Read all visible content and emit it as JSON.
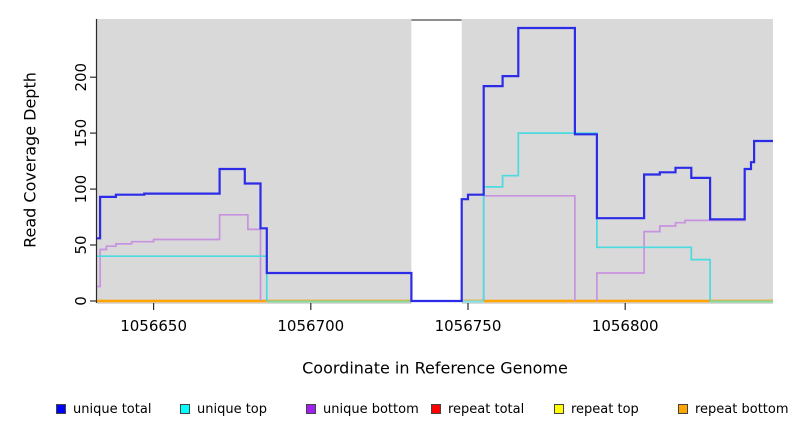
{
  "figure": {
    "y_axis_label": "Read Coverage Depth",
    "x_axis_label": "Coordinate in Reference Genome"
  },
  "legend": {
    "position": "bottom",
    "items": [
      {
        "label": "unique total",
        "color": "#0000FF"
      },
      {
        "label": "unique top",
        "color": "#00FFFF"
      },
      {
        "label": "unique bottom",
        "color": "#A020F0"
      },
      {
        "label": "repeat total",
        "color": "#FF0000"
      },
      {
        "label": "repeat top",
        "color": "#FFFF00"
      },
      {
        "label": "repeat bottom",
        "color": "#FFA500"
      }
    ]
  },
  "chart_data": {
    "type": "line",
    "step": true,
    "title": "",
    "xlabel": "Coordinate in Reference Genome",
    "ylabel": "Read Coverage Depth",
    "x_range": [
      1056632,
      1056847
    ],
    "y_range": [
      0,
      252
    ],
    "grid": false,
    "legend_position": "bottom",
    "plot_bg_color": "#D9D9D9",
    "x_ticks": [
      {
        "label": "1056650",
        "value": 1056650
      },
      {
        "label": "1056700",
        "value": 1056700
      },
      {
        "label": "1056750",
        "value": 1056750
      },
      {
        "label": "1056800",
        "value": 1056800
      }
    ],
    "y_ticks": [
      {
        "label": "0",
        "value": 0
      },
      {
        "label": "50",
        "value": 50
      },
      {
        "label": "100",
        "value": 100
      },
      {
        "label": "150",
        "value": 150
      },
      {
        "label": "200",
        "value": 200
      }
    ],
    "background_regions": [
      [
        1056632,
        1056732
      ],
      [
        1056748,
        1056847
      ]
    ],
    "coverage_gap": {
      "start": 1056732,
      "end": 1056748,
      "top_border_color": "#8E8E8E"
    },
    "series": [
      {
        "name": "repeat total",
        "line_color": "#FF0000",
        "segments": [
          [
            [
              1056632,
              0
            ],
            [
              1056732,
              0
            ]
          ],
          [
            [
              1056748,
              0
            ],
            [
              1056847,
              0
            ]
          ]
        ]
      },
      {
        "name": "repeat top",
        "line_color": "#FFFF00",
        "segments": [
          [
            [
              1056632,
              0
            ],
            [
              1056732,
              0
            ]
          ],
          [
            [
              1056748,
              0
            ],
            [
              1056847,
              0
            ]
          ]
        ]
      },
      {
        "name": "repeat bottom",
        "line_color": "#FFA500",
        "segments": [
          [
            [
              1056632,
              0
            ],
            [
              1056732,
              0
            ]
          ],
          [
            [
              1056748,
              0
            ],
            [
              1056847,
              0
            ]
          ]
        ]
      },
      {
        "name": "unique bottom",
        "line_color": "#C792DF",
        "segments": [
          [
            [
              1056632,
              13
            ],
            [
              1056633,
              46
            ],
            [
              1056635,
              49
            ],
            [
              1056638,
              51
            ],
            [
              1056643,
              53
            ],
            [
              1056650,
              55
            ],
            [
              1056671,
              77
            ],
            [
              1056680,
              64
            ],
            [
              1056684,
              0
            ]
          ],
          [
            [
              1056755,
              0
            ],
            [
              1056755,
              94
            ],
            [
              1056784,
              0
            ]
          ],
          [
            [
              1056791,
              0
            ],
            [
              1056791,
              25
            ],
            [
              1056806,
              62
            ],
            [
              1056811,
              67
            ],
            [
              1056816,
              70
            ],
            [
              1056819,
              72
            ],
            [
              1056838,
              118
            ],
            [
              1056840,
              124
            ],
            [
              1056841,
              143
            ],
            [
              1056847,
              143
            ]
          ]
        ]
      },
      {
        "name": "unique top",
        "line_color": "#4ADAE0",
        "segments": [
          [
            [
              1056632,
              40
            ],
            [
              1056686,
              0
            ]
          ],
          [
            [
              1056755,
              0
            ],
            [
              1056755,
              102
            ],
            [
              1056761,
              112
            ],
            [
              1056766,
              150
            ],
            [
              1056791,
              48
            ],
            [
              1056821,
              37
            ],
            [
              1056827,
              0
            ]
          ]
        ]
      },
      {
        "name": "unique total",
        "line_color": "#2C2CE8",
        "segments": [
          [
            [
              1056632,
              56
            ],
            [
              1056633,
              93
            ],
            [
              1056638,
              95
            ],
            [
              1056647,
              96
            ],
            [
              1056671,
              118
            ],
            [
              1056679,
              105
            ],
            [
              1056684,
              65
            ],
            [
              1056686,
              25
            ],
            [
              1056732,
              0
            ],
            [
              1056748,
              91
            ],
            [
              1056750,
              95
            ],
            [
              1056755,
              192
            ],
            [
              1056761,
              201
            ],
            [
              1056766,
              244
            ],
            [
              1056784,
              149
            ],
            [
              1056791,
              74
            ],
            [
              1056806,
              113
            ],
            [
              1056811,
              115
            ],
            [
              1056816,
              119
            ],
            [
              1056821,
              110
            ],
            [
              1056827,
              73
            ],
            [
              1056838,
              118
            ],
            [
              1056840,
              124
            ],
            [
              1056841,
              143
            ],
            [
              1056847,
              143
            ]
          ]
        ]
      }
    ],
    "zero_line_accents": [
      {
        "color": "#8BD79F",
        "from": 1056686,
        "to": 1056732
      },
      {
        "color": "#80E2E8",
        "from": 1056748,
        "to": 1056755
      },
      {
        "color": "#8BD79F",
        "from": 1056827,
        "to": 1056847
      }
    ]
  }
}
